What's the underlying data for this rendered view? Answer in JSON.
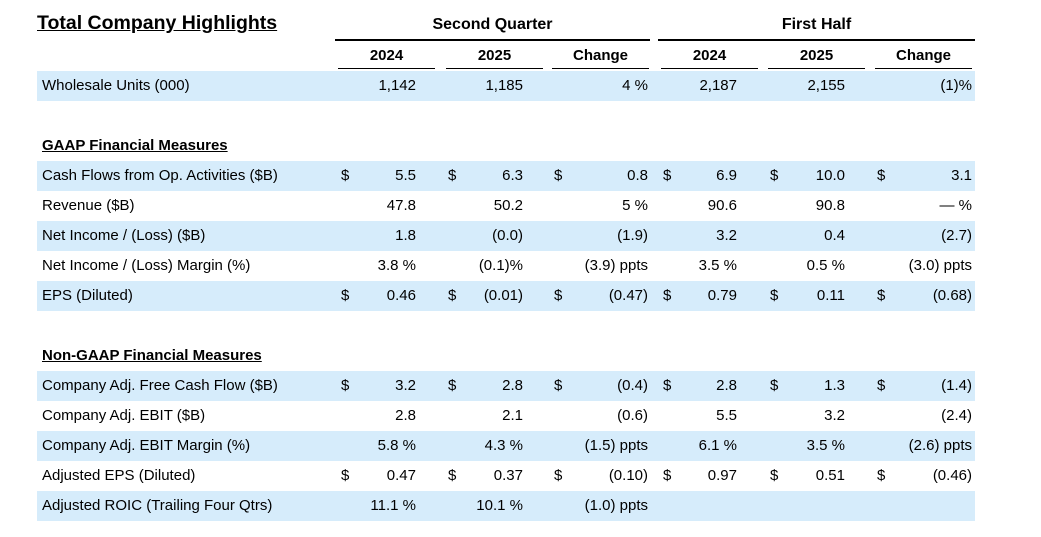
{
  "title": "Total Company Highlights",
  "groups": {
    "q2": "Second Quarter",
    "h1": "First Half"
  },
  "years": [
    "2024",
    "2025",
    "Change",
    "2024",
    "2025",
    "Change"
  ],
  "wholesale": {
    "label": "Wholesale Units (000)",
    "values": [
      "1,142",
      "1,185",
      "4 %",
      "2,187",
      "2,155",
      "(1)%"
    ]
  },
  "gaap": {
    "heading": "GAAP Financial Measures",
    "rows": [
      {
        "label": "Cash Flows from Op. Activities ($B)",
        "dollar": true,
        "values": [
          "5.5",
          "6.3",
          "0.8",
          "6.9",
          "10.0",
          "3.1"
        ]
      },
      {
        "label": "Revenue ($B)",
        "dollar": false,
        "values": [
          "47.8",
          "50.2",
          "5 %",
          "90.6",
          "90.8",
          "— %"
        ]
      },
      {
        "label": "Net Income / (Loss) ($B)",
        "dollar": false,
        "values": [
          "1.8",
          "(0.0)",
          "(1.9)",
          "3.2",
          "0.4",
          "(2.7)"
        ]
      },
      {
        "label": "Net Income / (Loss) Margin (%)",
        "dollar": false,
        "values": [
          "3.8 %",
          "(0.1)%",
          "(3.9) ppts",
          "3.5 %",
          "0.5 %",
          "(3.0) ppts"
        ]
      },
      {
        "label": "EPS (Diluted)",
        "dollar": true,
        "values": [
          "0.46",
          "(0.01)",
          "(0.47)",
          "0.79",
          "0.11",
          "(0.68)"
        ]
      }
    ]
  },
  "nongaap": {
    "heading": "Non-GAAP Financial Measures",
    "rows": [
      {
        "label": "Company Adj. Free Cash Flow ($B)",
        "dollar": true,
        "values": [
          "3.2",
          "2.8",
          "(0.4)",
          "2.8",
          "1.3",
          "(1.4)"
        ]
      },
      {
        "label": "Company Adj. EBIT ($B)",
        "dollar": false,
        "values": [
          "2.8",
          "2.1",
          "(0.6)",
          "5.5",
          "3.2",
          "(2.4)"
        ]
      },
      {
        "label": "Company Adj. EBIT Margin (%)",
        "dollar": false,
        "values": [
          "5.8 %",
          "4.3 %",
          "(1.5) ppts",
          "6.1 %",
          "3.5 %",
          "(2.6) ppts"
        ]
      },
      {
        "label": "Adjusted EPS (Diluted)",
        "dollar": true,
        "values": [
          "0.47",
          "0.37",
          "(0.10)",
          "0.97",
          "0.51",
          "(0.46)"
        ]
      },
      {
        "label": "Adjusted ROIC (Trailing Four Qtrs)",
        "dollar": false,
        "values": [
          "11.1 %",
          "10.1 %",
          "(1.0) ppts",
          "",
          "",
          ""
        ]
      }
    ]
  },
  "currency_symbol": "$",
  "band_color": "#d6ecfb"
}
